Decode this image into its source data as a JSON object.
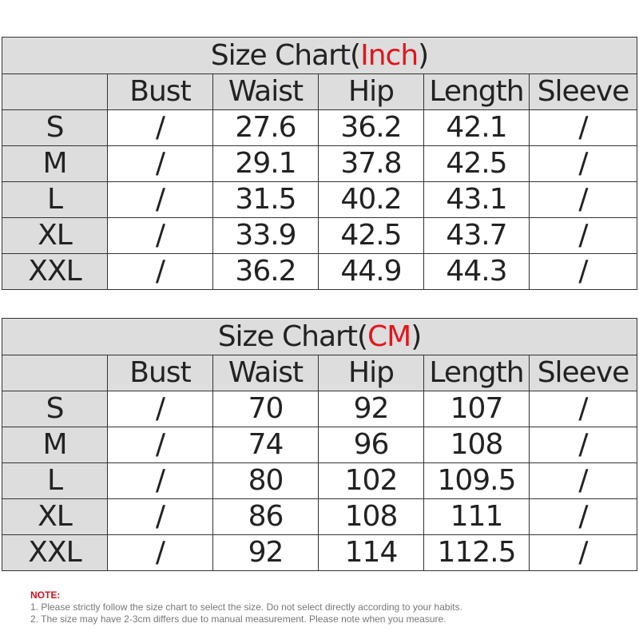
{
  "tables": [
    {
      "title_prefix": "Size Chart(",
      "unit": "Inch",
      "title_suffix": ")",
      "headers": [
        "",
        "Bust",
        "Waist",
        "Hip",
        "Length",
        "Sleeve"
      ],
      "rows": [
        [
          "S",
          "/",
          "27.6",
          "36.2",
          "42.1",
          "/"
        ],
        [
          "M",
          "/",
          "29.1",
          "37.8",
          "42.5",
          "/"
        ],
        [
          "L",
          "/",
          "31.5",
          "40.2",
          "43.1",
          "/"
        ],
        [
          "XL",
          "/",
          "33.9",
          "42.5",
          "43.7",
          "/"
        ],
        [
          "XXL",
          "/",
          "36.2",
          "44.9",
          "44.3",
          "/"
        ]
      ]
    },
    {
      "title_prefix": "Size Chart(",
      "unit": "CM",
      "title_suffix": ")",
      "headers": [
        "",
        "Bust",
        "Waist",
        "Hip",
        "Length",
        "Sleeve"
      ],
      "rows": [
        [
          "S",
          "/",
          "70",
          "92",
          "107",
          "/"
        ],
        [
          "M",
          "/",
          "74",
          "96",
          "108",
          "/"
        ],
        [
          "L",
          "/",
          "80",
          "102",
          "109.5",
          "/"
        ],
        [
          "XL",
          "/",
          "86",
          "108",
          "111",
          "/"
        ],
        [
          "XXL",
          "/",
          "92",
          "114",
          "112.5",
          "/"
        ]
      ]
    }
  ],
  "notes": {
    "heading": "NOTE:",
    "items": [
      "1. Please strictly follow the size chart  to select the size. Do not select directly according to your habits.",
      "2. The size may have 2-3cm differs due to manual measurement. Please note when you measure."
    ]
  },
  "colors": {
    "header_bg": "#dddddd",
    "accent_red": "#e5141b",
    "border": "#333333"
  }
}
